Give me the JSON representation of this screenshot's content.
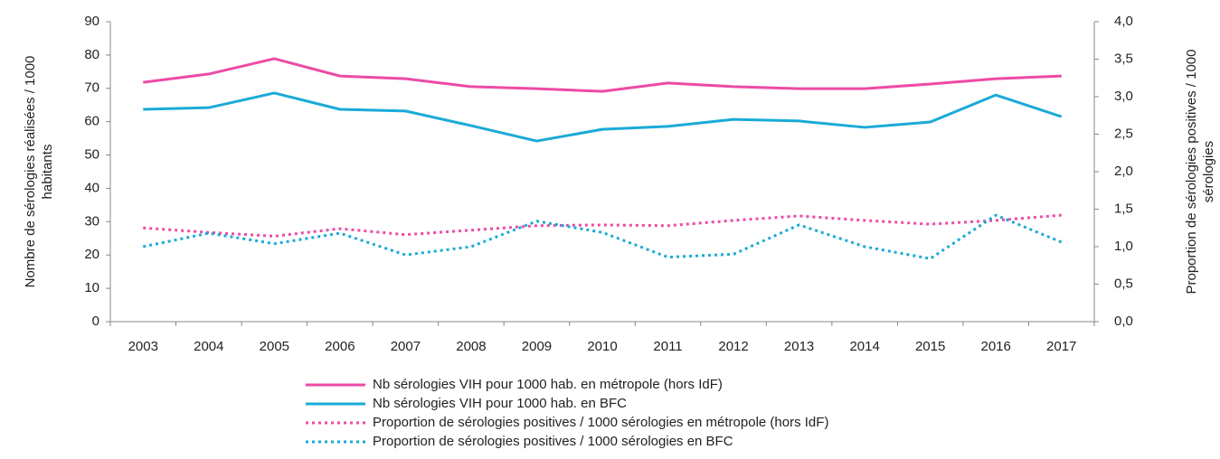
{
  "chart_data": {
    "type": "line",
    "ylabel": [
      "Nombre de sérologies réalisées / 1000",
      "habitants"
    ],
    "y2label": [
      "Proportion de sérologies positives / 1000",
      "sérologies"
    ],
    "categories": [
      "2003",
      "2004",
      "2005",
      "2006",
      "2007",
      "2008",
      "2009",
      "2010",
      "2011",
      "2012",
      "2013",
      "2014",
      "2015",
      "2016",
      "2017"
    ],
    "ylim": [
      0,
      90
    ],
    "yticks": [
      0,
      10,
      20,
      30,
      40,
      50,
      60,
      70,
      80,
      90
    ],
    "y2lim": [
      0,
      4
    ],
    "y2ticks": [
      {
        "value": 0,
        "label": "0,0"
      },
      {
        "value": 0.5,
        "label": "0,5"
      },
      {
        "value": 1,
        "label": "1,0"
      },
      {
        "value": 1.5,
        "label": "1,5"
      },
      {
        "value": 2,
        "label": "2,0"
      },
      {
        "value": 2.5,
        "label": "2,5"
      },
      {
        "value": 3,
        "label": "3,0"
      },
      {
        "value": 3.5,
        "label": "3,5"
      },
      {
        "value": 4,
        "label": "4,0"
      }
    ],
    "legend": "bottom",
    "series": [
      {
        "name": "Nb sérologies VIH pour 1000 hab. en métropole (hors IdF)",
        "color": "#ec4ba6",
        "style": "solid",
        "values": [
          71.8,
          74.3,
          78.9,
          73.7,
          72.9,
          70.5,
          69.9,
          69.1,
          71.6,
          70.5,
          69.9,
          69.9,
          71.3,
          72.9,
          73.7
        ]
      },
      {
        "name": "Nb sérologies VIH pour 1000 hab. en BFC",
        "color": "#1aaad8",
        "style": "solid",
        "values": [
          63.7,
          64.2,
          68.6,
          63.7,
          63.2,
          58.8,
          54.2,
          57.7,
          58.6,
          60.7,
          60.2,
          58.3,
          59.9,
          68.0,
          61.5
        ]
      },
      {
        "name": "Proportion de sérologies positives / 1000 sérologies en métropole (hors IdF)",
        "color": "#ec4ba6",
        "style": "dotted",
        "axis": "y2",
        "values": [
          1.25,
          1.19,
          1.14,
          1.24,
          1.16,
          1.22,
          1.28,
          1.29,
          1.28,
          1.35,
          1.41,
          1.35,
          1.3,
          1.35,
          1.42
        ]
      },
      {
        "name": "Proportion de sérologies positives / 1000 sérologies en BFC",
        "color": "#1aaad8",
        "style": "dotted",
        "axis": "y2",
        "values": [
          1.0,
          1.18,
          1.04,
          1.18,
          0.89,
          1.0,
          1.34,
          1.19,
          0.86,
          0.9,
          1.29,
          1.0,
          0.84,
          1.42,
          1.06
        ]
      }
    ]
  }
}
